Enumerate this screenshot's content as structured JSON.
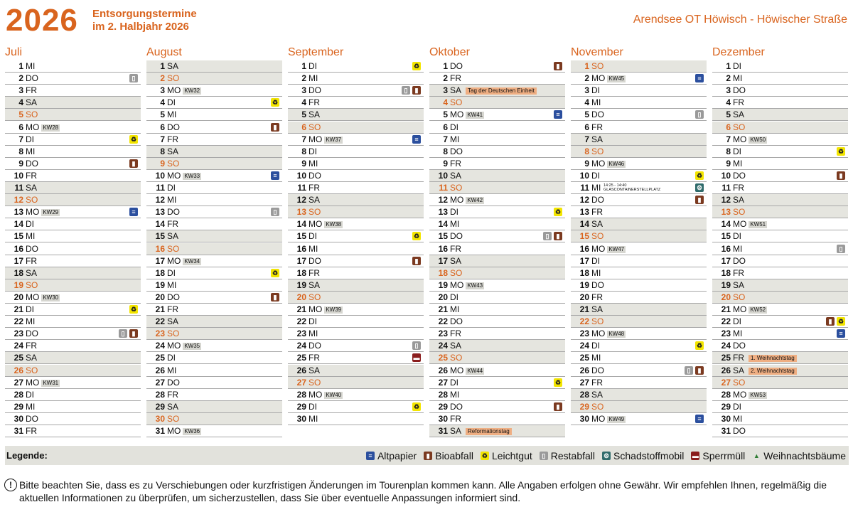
{
  "header": {
    "year": "2026",
    "subtitle": [
      "Entsorgungstermine",
      "im 2. Halbjahr 2026"
    ],
    "location": "Arendsee OT Höwisch - Höwischer Straße"
  },
  "months": [
    {
      "name": "Juli",
      "days": [
        {
          "d": 1,
          "w": "MI"
        },
        {
          "d": 2,
          "w": "DO",
          "bins": [
            "Restabfall"
          ]
        },
        {
          "d": 3,
          "w": "FR"
        },
        {
          "d": 4,
          "w": "SA"
        },
        {
          "d": 5,
          "w": "SO"
        },
        {
          "d": 6,
          "w": "MO",
          "kw": "KW28"
        },
        {
          "d": 7,
          "w": "DI",
          "bins": [
            "Leichtgut"
          ]
        },
        {
          "d": 8,
          "w": "MI"
        },
        {
          "d": 9,
          "w": "DO",
          "bins": [
            "Bioabfall"
          ]
        },
        {
          "d": 10,
          "w": "FR"
        },
        {
          "d": 11,
          "w": "SA"
        },
        {
          "d": 12,
          "w": "SO"
        },
        {
          "d": 13,
          "w": "MO",
          "kw": "KW29",
          "bins": [
            "Altpapier"
          ]
        },
        {
          "d": 14,
          "w": "DI"
        },
        {
          "d": 15,
          "w": "MI"
        },
        {
          "d": 16,
          "w": "DO"
        },
        {
          "d": 17,
          "w": "FR"
        },
        {
          "d": 18,
          "w": "SA"
        },
        {
          "d": 19,
          "w": "SO"
        },
        {
          "d": 20,
          "w": "MO",
          "kw": "KW30"
        },
        {
          "d": 21,
          "w": "DI",
          "bins": [
            "Leichtgut"
          ]
        },
        {
          "d": 22,
          "w": "MI"
        },
        {
          "d": 23,
          "w": "DO",
          "bins": [
            "Restabfall",
            "Bioabfall"
          ]
        },
        {
          "d": 24,
          "w": "FR"
        },
        {
          "d": 25,
          "w": "SA"
        },
        {
          "d": 26,
          "w": "SO"
        },
        {
          "d": 27,
          "w": "MO",
          "kw": "KW31"
        },
        {
          "d": 28,
          "w": "DI"
        },
        {
          "d": 29,
          "w": "MI"
        },
        {
          "d": 30,
          "w": "DO"
        },
        {
          "d": 31,
          "w": "FR"
        }
      ]
    },
    {
      "name": "August",
      "days": [
        {
          "d": 1,
          "w": "SA"
        },
        {
          "d": 2,
          "w": "SO"
        },
        {
          "d": 3,
          "w": "MO",
          "kw": "KW32"
        },
        {
          "d": 4,
          "w": "DI",
          "bins": [
            "Leichtgut"
          ]
        },
        {
          "d": 5,
          "w": "MI"
        },
        {
          "d": 6,
          "w": "DO",
          "bins": [
            "Bioabfall"
          ]
        },
        {
          "d": 7,
          "w": "FR"
        },
        {
          "d": 8,
          "w": "SA"
        },
        {
          "d": 9,
          "w": "SO"
        },
        {
          "d": 10,
          "w": "MO",
          "kw": "KW33",
          "bins": [
            "Altpapier"
          ]
        },
        {
          "d": 11,
          "w": "DI"
        },
        {
          "d": 12,
          "w": "MI"
        },
        {
          "d": 13,
          "w": "DO",
          "bins": [
            "Restabfall"
          ]
        },
        {
          "d": 14,
          "w": "FR"
        },
        {
          "d": 15,
          "w": "SA"
        },
        {
          "d": 16,
          "w": "SO"
        },
        {
          "d": 17,
          "w": "MO",
          "kw": "KW34"
        },
        {
          "d": 18,
          "w": "DI",
          "bins": [
            "Leichtgut"
          ]
        },
        {
          "d": 19,
          "w": "MI"
        },
        {
          "d": 20,
          "w": "DO",
          "bins": [
            "Bioabfall"
          ]
        },
        {
          "d": 21,
          "w": "FR"
        },
        {
          "d": 22,
          "w": "SA"
        },
        {
          "d": 23,
          "w": "SO"
        },
        {
          "d": 24,
          "w": "MO",
          "kw": "KW35"
        },
        {
          "d": 25,
          "w": "DI"
        },
        {
          "d": 26,
          "w": "MI"
        },
        {
          "d": 27,
          "w": "DO"
        },
        {
          "d": 28,
          "w": "FR"
        },
        {
          "d": 29,
          "w": "SA"
        },
        {
          "d": 30,
          "w": "SO"
        },
        {
          "d": 31,
          "w": "MO",
          "kw": "KW36"
        }
      ]
    },
    {
      "name": "September",
      "days": [
        {
          "d": 1,
          "w": "DI",
          "bins": [
            "Leichtgut"
          ]
        },
        {
          "d": 2,
          "w": "MI"
        },
        {
          "d": 3,
          "w": "DO",
          "bins": [
            "Restabfall",
            "Bioabfall"
          ]
        },
        {
          "d": 4,
          "w": "FR"
        },
        {
          "d": 5,
          "w": "SA"
        },
        {
          "d": 6,
          "w": "SO"
        },
        {
          "d": 7,
          "w": "MO",
          "kw": "KW37",
          "bins": [
            "Altpapier"
          ]
        },
        {
          "d": 8,
          "w": "DI"
        },
        {
          "d": 9,
          "w": "MI"
        },
        {
          "d": 10,
          "w": "DO"
        },
        {
          "d": 11,
          "w": "FR"
        },
        {
          "d": 12,
          "w": "SA"
        },
        {
          "d": 13,
          "w": "SO"
        },
        {
          "d": 14,
          "w": "MO",
          "kw": "KW38"
        },
        {
          "d": 15,
          "w": "DI",
          "bins": [
            "Leichtgut"
          ]
        },
        {
          "d": 16,
          "w": "MI"
        },
        {
          "d": 17,
          "w": "DO",
          "bins": [
            "Bioabfall"
          ]
        },
        {
          "d": 18,
          "w": "FR"
        },
        {
          "d": 19,
          "w": "SA"
        },
        {
          "d": 20,
          "w": "SO"
        },
        {
          "d": 21,
          "w": "MO",
          "kw": "KW39"
        },
        {
          "d": 22,
          "w": "DI"
        },
        {
          "d": 23,
          "w": "MI"
        },
        {
          "d": 24,
          "w": "DO",
          "bins": [
            "Restabfall"
          ]
        },
        {
          "d": 25,
          "w": "FR",
          "bins": [
            "Sperrmüll"
          ]
        },
        {
          "d": 26,
          "w": "SA"
        },
        {
          "d": 27,
          "w": "SO"
        },
        {
          "d": 28,
          "w": "MO",
          "kw": "KW40"
        },
        {
          "d": 29,
          "w": "DI",
          "bins": [
            "Leichtgut"
          ]
        },
        {
          "d": 30,
          "w": "MI"
        }
      ]
    },
    {
      "name": "Oktober",
      "days": [
        {
          "d": 1,
          "w": "DO",
          "bins": [
            "Bioabfall"
          ]
        },
        {
          "d": 2,
          "w": "FR"
        },
        {
          "d": 3,
          "w": "SA",
          "note": "Tag der Deutschen Einheit"
        },
        {
          "d": 4,
          "w": "SO"
        },
        {
          "d": 5,
          "w": "MO",
          "kw": "KW41",
          "bins": [
            "Altpapier"
          ]
        },
        {
          "d": 6,
          "w": "DI"
        },
        {
          "d": 7,
          "w": "MI"
        },
        {
          "d": 8,
          "w": "DO"
        },
        {
          "d": 9,
          "w": "FR"
        },
        {
          "d": 10,
          "w": "SA"
        },
        {
          "d": 11,
          "w": "SO"
        },
        {
          "d": 12,
          "w": "MO",
          "kw": "KW42"
        },
        {
          "d": 13,
          "w": "DI",
          "bins": [
            "Leichtgut"
          ]
        },
        {
          "d": 14,
          "w": "MI"
        },
        {
          "d": 15,
          "w": "DO",
          "bins": [
            "Restabfall",
            "Bioabfall"
          ]
        },
        {
          "d": 16,
          "w": "FR"
        },
        {
          "d": 17,
          "w": "SA"
        },
        {
          "d": 18,
          "w": "SO"
        },
        {
          "d": 19,
          "w": "MO",
          "kw": "KW43"
        },
        {
          "d": 20,
          "w": "DI"
        },
        {
          "d": 21,
          "w": "MI"
        },
        {
          "d": 22,
          "w": "DO"
        },
        {
          "d": 23,
          "w": "FR"
        },
        {
          "d": 24,
          "w": "SA"
        },
        {
          "d": 25,
          "w": "SO"
        },
        {
          "d": 26,
          "w": "MO",
          "kw": "KW44"
        },
        {
          "d": 27,
          "w": "DI",
          "bins": [
            "Leichtgut"
          ]
        },
        {
          "d": 28,
          "w": "MI"
        },
        {
          "d": 29,
          "w": "DO",
          "bins": [
            "Bioabfall"
          ]
        },
        {
          "d": 30,
          "w": "FR"
        },
        {
          "d": 31,
          "w": "SA",
          "note": "Reformationstag"
        }
      ]
    },
    {
      "name": "November",
      "days": [
        {
          "d": 1,
          "w": "SO"
        },
        {
          "d": 2,
          "w": "MO",
          "kw": "KW45",
          "bins": [
            "Altpapier"
          ]
        },
        {
          "d": 3,
          "w": "DI"
        },
        {
          "d": 4,
          "w": "MI"
        },
        {
          "d": 5,
          "w": "DO",
          "bins": [
            "Restabfall"
          ]
        },
        {
          "d": 6,
          "w": "FR"
        },
        {
          "d": 7,
          "w": "SA"
        },
        {
          "d": 8,
          "w": "SO"
        },
        {
          "d": 9,
          "w": "MO",
          "kw": "KW46"
        },
        {
          "d": 10,
          "w": "DI",
          "bins": [
            "Leichtgut"
          ]
        },
        {
          "d": 11,
          "w": "MI",
          "info": [
            "14:25 - 14:40",
            "GLASCONTAINERSTELLPLATZ"
          ],
          "bins": [
            "Schadstoffmobil"
          ]
        },
        {
          "d": 12,
          "w": "DO",
          "bins": [
            "Bioabfall"
          ]
        },
        {
          "d": 13,
          "w": "FR"
        },
        {
          "d": 14,
          "w": "SA"
        },
        {
          "d": 15,
          "w": "SO"
        },
        {
          "d": 16,
          "w": "MO",
          "kw": "KW47"
        },
        {
          "d": 17,
          "w": "DI"
        },
        {
          "d": 18,
          "w": "MI"
        },
        {
          "d": 19,
          "w": "DO"
        },
        {
          "d": 20,
          "w": "FR"
        },
        {
          "d": 21,
          "w": "SA"
        },
        {
          "d": 22,
          "w": "SO"
        },
        {
          "d": 23,
          "w": "MO",
          "kw": "KW48"
        },
        {
          "d": 24,
          "w": "DI",
          "bins": [
            "Leichtgut"
          ]
        },
        {
          "d": 25,
          "w": "MI"
        },
        {
          "d": 26,
          "w": "DO",
          "bins": [
            "Restabfall",
            "Bioabfall"
          ]
        },
        {
          "d": 27,
          "w": "FR"
        },
        {
          "d": 28,
          "w": "SA"
        },
        {
          "d": 29,
          "w": "SO"
        },
        {
          "d": 30,
          "w": "MO",
          "kw": "KW49",
          "bins": [
            "Altpapier"
          ]
        }
      ]
    },
    {
      "name": "Dezember",
      "days": [
        {
          "d": 1,
          "w": "DI"
        },
        {
          "d": 2,
          "w": "MI"
        },
        {
          "d": 3,
          "w": "DO"
        },
        {
          "d": 4,
          "w": "FR"
        },
        {
          "d": 5,
          "w": "SA"
        },
        {
          "d": 6,
          "w": "SO"
        },
        {
          "d": 7,
          "w": "MO",
          "kw": "KW50"
        },
        {
          "d": 8,
          "w": "DI",
          "bins": [
            "Leichtgut"
          ]
        },
        {
          "d": 9,
          "w": "MI"
        },
        {
          "d": 10,
          "w": "DO",
          "bins": [
            "Bioabfall"
          ]
        },
        {
          "d": 11,
          "w": "FR"
        },
        {
          "d": 12,
          "w": "SA"
        },
        {
          "d": 13,
          "w": "SO"
        },
        {
          "d": 14,
          "w": "MO",
          "kw": "KW51"
        },
        {
          "d": 15,
          "w": "DI"
        },
        {
          "d": 16,
          "w": "MI",
          "bins": [
            "Restabfall"
          ]
        },
        {
          "d": 17,
          "w": "DO"
        },
        {
          "d": 18,
          "w": "FR"
        },
        {
          "d": 19,
          "w": "SA"
        },
        {
          "d": 20,
          "w": "SO"
        },
        {
          "d": 21,
          "w": "MO",
          "kw": "KW52"
        },
        {
          "d": 22,
          "w": "DI",
          "bins": [
            "Bioabfall",
            "Leichtgut"
          ]
        },
        {
          "d": 23,
          "w": "MI",
          "bins": [
            "Altpapier"
          ]
        },
        {
          "d": 24,
          "w": "DO"
        },
        {
          "d": 25,
          "w": "FR",
          "note": "1. Weihnachtstag"
        },
        {
          "d": 26,
          "w": "SA",
          "note": "2. Weihnachtstag"
        },
        {
          "d": 27,
          "w": "SO"
        },
        {
          "d": 28,
          "w": "MO",
          "kw": "KW53"
        },
        {
          "d": 29,
          "w": "DI"
        },
        {
          "d": 30,
          "w": "MI"
        },
        {
          "d": 31,
          "w": "DO"
        }
      ]
    }
  ],
  "legend": {
    "title": "Legende:",
    "items": [
      {
        "name": "Altpapier",
        "color": "#2b4f9e"
      },
      {
        "name": "Bioabfall",
        "color": "#7b3a20"
      },
      {
        "name": "Leichtgut",
        "color": "#f3e500"
      },
      {
        "name": "Restabfall",
        "color": "#9a9a9a"
      },
      {
        "name": "Schadstoffmobil",
        "color": "#2f6b6b"
      },
      {
        "name": "Sperrmüll",
        "color": "#8a1c1c"
      },
      {
        "name": "Weihnachtsbäume",
        "color": "#2e7d32"
      }
    ]
  },
  "footer": {
    "icon": "!",
    "text": "Bitte beachten Sie, dass es zu Verschiebungen oder kurzfristigen Änderungen im Tourenplan kommen kann. Alle Angaben erfolgen ohne Gewähr. Wir empfehlen Ihnen, regelmäßig die aktuellen Informationen zu überprüfen, um sicherzustellen, dass Sie über eventuelle Anpassungen informiert sind."
  }
}
